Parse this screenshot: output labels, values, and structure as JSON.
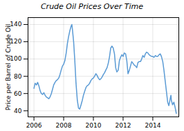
{
  "chart_data": {
    "type": "line",
    "title": "Crude Oil Prices Over Time",
    "ylabel": "Price per Barrel of Crude Oil",
    "color": "#5b9bd5",
    "grid": true,
    "xlim": [
      2005.6,
      2015.75
    ],
    "xticks": [
      2006,
      2008,
      2010,
      2012,
      2014
    ],
    "ylim": [
      33,
      148
    ],
    "yticks": [
      40,
      60,
      80,
      100,
      120,
      140
    ],
    "x": [
      2006.0,
      2006.08,
      2006.17,
      2006.25,
      2006.33,
      2006.42,
      2006.5,
      2006.58,
      2006.67,
      2006.75,
      2006.83,
      2006.92,
      2007.0,
      2007.08,
      2007.17,
      2007.25,
      2007.33,
      2007.42,
      2007.5,
      2007.58,
      2007.67,
      2007.75,
      2007.83,
      2007.92,
      2008.0,
      2008.08,
      2008.17,
      2008.25,
      2008.33,
      2008.42,
      2008.5,
      2008.55,
      2008.58,
      2008.67,
      2008.75,
      2008.83,
      2008.92,
      2009.0,
      2009.08,
      2009.17,
      2009.25,
      2009.33,
      2009.42,
      2009.5,
      2009.58,
      2009.67,
      2009.75,
      2009.83,
      2009.92,
      2010.0,
      2010.08,
      2010.17,
      2010.25,
      2010.33,
      2010.42,
      2010.5,
      2010.58,
      2010.67,
      2010.75,
      2010.83,
      2010.92,
      2011.0,
      2011.08,
      2011.17,
      2011.25,
      2011.33,
      2011.42,
      2011.5,
      2011.58,
      2011.67,
      2011.75,
      2011.83,
      2011.92,
      2012.0,
      2012.08,
      2012.17,
      2012.25,
      2012.33,
      2012.42,
      2012.5,
      2012.58,
      2012.67,
      2012.75,
      2012.83,
      2012.92,
      2013.0,
      2013.08,
      2013.17,
      2013.25,
      2013.33,
      2013.42,
      2013.5,
      2013.58,
      2013.67,
      2013.75,
      2013.83,
      2013.92,
      2014.0,
      2014.08,
      2014.17,
      2014.25,
      2014.33,
      2014.42,
      2014.5,
      2014.58,
      2014.67,
      2014.75,
      2014.83,
      2014.92,
      2015.0,
      2015.08,
      2015.17,
      2015.22,
      2015.25,
      2015.33,
      2015.42,
      2015.5,
      2015.58
    ],
    "values": [
      66,
      72,
      70,
      73,
      69,
      63,
      60,
      59,
      61,
      58,
      56,
      55,
      54,
      56,
      60,
      65,
      70,
      73,
      75,
      76,
      78,
      82,
      87,
      92,
      94,
      98,
      107,
      118,
      126,
      133,
      138,
      140,
      136,
      120,
      98,
      72,
      52,
      43,
      42,
      47,
      52,
      58,
      63,
      67,
      69,
      70,
      72,
      75,
      77,
      78,
      80,
      83,
      81,
      78,
      76,
      77,
      79,
      82,
      84,
      87,
      90,
      95,
      102,
      113,
      115,
      113,
      106,
      90,
      85,
      87,
      98,
      102,
      105,
      103,
      107,
      106,
      98,
      83,
      87,
      92,
      97,
      95,
      93,
      92,
      90,
      96,
      97,
      97,
      100,
      104,
      102,
      106,
      108,
      107,
      105,
      104,
      103,
      103,
      102,
      104,
      103,
      103,
      105,
      106,
      103,
      97,
      87,
      75,
      62,
      50,
      46,
      54,
      58,
      52,
      47,
      50,
      44,
      37
    ]
  }
}
